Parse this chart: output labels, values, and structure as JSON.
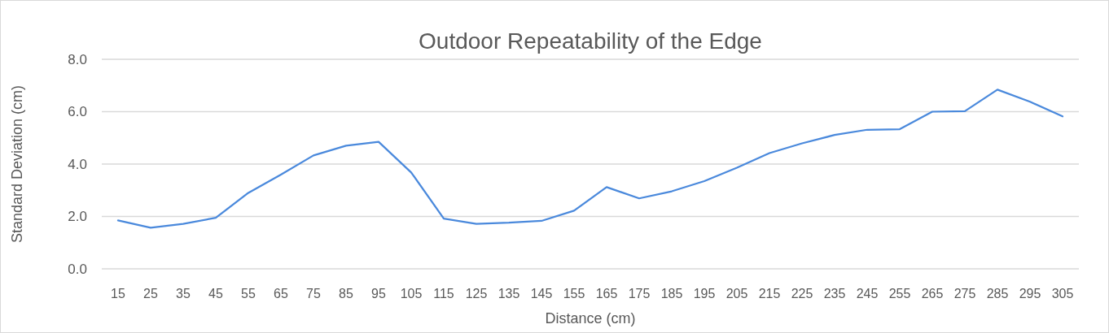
{
  "chart_data": {
    "type": "line",
    "title": "Outdoor Repeatability of the Edge",
    "xlabel": "Distance (cm)",
    "ylabel": "Standard Deviation (cm)",
    "categories": [
      "15",
      "25",
      "35",
      "45",
      "55",
      "65",
      "75",
      "85",
      "95",
      "105",
      "115",
      "125",
      "135",
      "145",
      "155",
      "165",
      "175",
      "185",
      "195",
      "205",
      "215",
      "225",
      "235",
      "245",
      "255",
      "265",
      "275",
      "285",
      "295",
      "305"
    ],
    "series": [
      {
        "color": "#4a89dc",
        "values": [
          1.85,
          1.57,
          1.72,
          1.95,
          2.9,
          3.6,
          4.33,
          4.7,
          4.85,
          3.68,
          1.92,
          1.72,
          1.76,
          1.83,
          2.22,
          3.12,
          2.69,
          2.96,
          3.35,
          3.86,
          4.42,
          4.79,
          5.11,
          5.31,
          5.33,
          6.0,
          6.02,
          6.84,
          6.38,
          5.82
        ]
      }
    ],
    "ylim": [
      0,
      8
    ],
    "yticks": [
      {
        "value": 0,
        "label": "0.0"
      },
      {
        "value": 2,
        "label": "2.0"
      },
      {
        "value": 4,
        "label": "4.0"
      },
      {
        "value": 6,
        "label": "6.0"
      },
      {
        "value": 8,
        "label": "8.0"
      }
    ],
    "grid": "y",
    "marker": "none",
    "line_style": "solid"
  }
}
